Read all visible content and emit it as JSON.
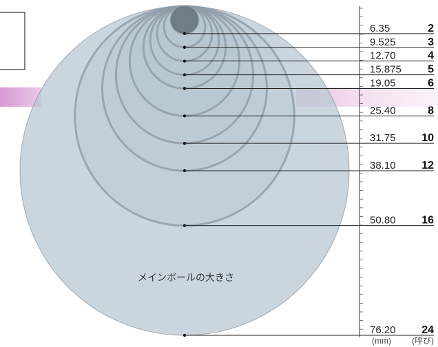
{
  "caption": "メインボールの大きさ",
  "units": {
    "diameter": "(mm)",
    "nominal": "(呼び)"
  },
  "balls": [
    {
      "diameter": "6.35",
      "nominal": "2"
    },
    {
      "diameter": "9.525",
      "nominal": "3"
    },
    {
      "diameter": "12.70",
      "nominal": "4"
    },
    {
      "diameter": "15.875",
      "nominal": "5"
    },
    {
      "diameter": "19.05",
      "nominal": "6"
    },
    {
      "diameter": "25.40",
      "nominal": "8"
    },
    {
      "diameter": "31.75",
      "nominal": "10"
    },
    {
      "diameter": "38.10",
      "nominal": "12"
    },
    {
      "diameter": "50.80",
      "nominal": "16"
    },
    {
      "diameter": "76.20",
      "nominal": "24"
    }
  ],
  "colors": {
    "circle_fill": "#b9c7d3",
    "circle_stroke": "#8d9ba7",
    "accent_band": "#d58fcf",
    "line": "#222222"
  }
}
